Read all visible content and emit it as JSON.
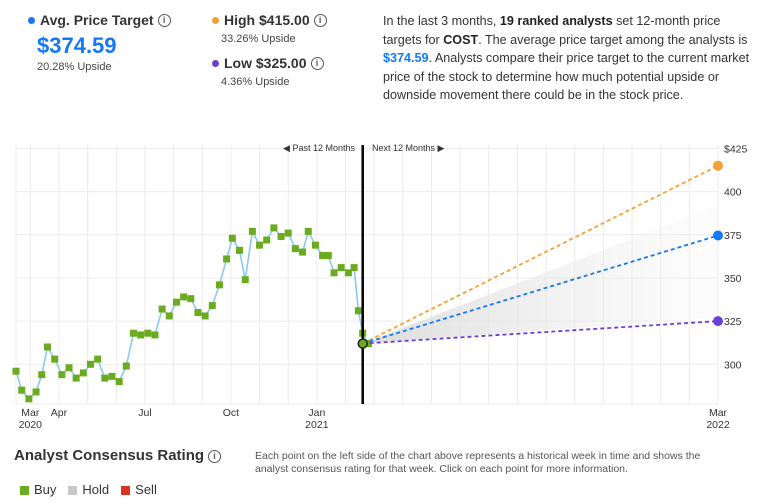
{
  "avg": {
    "label": "Avg. Price Target",
    "value": "$374.59",
    "upside": "20.28% Upside",
    "color": "#1479f5"
  },
  "high": {
    "label": "High $415.00",
    "upside": "33.26% Upside",
    "color": "#f5a032"
  },
  "low": {
    "label": "Low $325.00",
    "upside": "4.36% Upside",
    "color": "#6a3fd6"
  },
  "description": {
    "p1": "In the last 3 months, ",
    "analysts": "19 ranked analysts",
    "p2": " set 12-month price targets for ",
    "ticker": "COST",
    "p3": ". The average price target among the analysts is ",
    "price": "$374.59",
    "p4": ". Analysts compare their price target to the current market price of the stock to determine how much potential upside or downside movement there could be in the stock price."
  },
  "past_label": "Past 12 Months",
  "next_label": "Next 12 Months",
  "rating": {
    "title": "Analyst Consensus Rating",
    "note": "Each point on the left side of the chart above represents a historical week in time and shows the analyst consensus rating for that week. Click on each point for more information.",
    "legend": [
      {
        "label": "Buy",
        "color": "#6aab1f"
      },
      {
        "label": "Hold",
        "color": "#c8c8c8"
      },
      {
        "label": "Sell",
        "color": "#d9341e"
      }
    ]
  },
  "chart_data": {
    "type": "line",
    "ylim": [
      277,
      427
    ],
    "yticks": [
      300,
      325,
      350,
      375,
      400,
      425
    ],
    "ytick_labels": [
      "300",
      "325",
      "350",
      "375",
      "400",
      "$425"
    ],
    "x_labels": [
      {
        "x": 0.5,
        "label": "Mar",
        "sub": "2020"
      },
      {
        "x": 1.5,
        "label": "Apr",
        "sub": ""
      },
      {
        "x": 4.5,
        "label": "Jul",
        "sub": ""
      },
      {
        "x": 7.5,
        "label": "Oct",
        "sub": ""
      },
      {
        "x": 10.5,
        "label": "Jan",
        "sub": "2021"
      },
      {
        "x": 24.5,
        "label": "Mar",
        "sub": "2022"
      }
    ],
    "xlim": [
      0,
      24.5
    ],
    "current": {
      "x": 12.1,
      "y": 312
    },
    "price_weeks": [
      [
        0.0,
        296
      ],
      [
        0.2,
        285
      ],
      [
        0.45,
        280
      ],
      [
        0.7,
        284
      ],
      [
        0.9,
        294
      ],
      [
        1.1,
        310
      ],
      [
        1.35,
        303
      ],
      [
        1.6,
        294
      ],
      [
        1.85,
        298
      ],
      [
        2.1,
        292
      ],
      [
        2.35,
        295
      ],
      [
        2.6,
        300
      ],
      [
        2.85,
        303
      ],
      [
        3.1,
        292
      ],
      [
        3.35,
        293
      ],
      [
        3.6,
        290
      ],
      [
        3.85,
        299
      ],
      [
        4.1,
        318
      ],
      [
        4.35,
        317
      ],
      [
        4.6,
        318
      ],
      [
        4.85,
        317
      ],
      [
        5.1,
        332
      ],
      [
        5.35,
        328
      ],
      [
        5.6,
        336
      ],
      [
        5.85,
        339
      ],
      [
        6.1,
        338
      ],
      [
        6.35,
        330
      ],
      [
        6.6,
        328
      ],
      [
        6.85,
        334
      ],
      [
        7.1,
        346
      ],
      [
        7.35,
        361
      ],
      [
        7.55,
        373
      ],
      [
        7.8,
        366
      ],
      [
        8.0,
        349
      ],
      [
        8.25,
        377
      ],
      [
        8.5,
        369
      ],
      [
        8.75,
        372
      ],
      [
        9.0,
        379
      ],
      [
        9.25,
        374
      ],
      [
        9.5,
        376
      ],
      [
        9.75,
        367
      ],
      [
        10.0,
        365
      ],
      [
        10.2,
        377
      ],
      [
        10.45,
        369
      ],
      [
        10.7,
        363
      ],
      [
        10.9,
        363
      ],
      [
        11.1,
        353
      ],
      [
        11.35,
        356
      ],
      [
        11.6,
        353
      ],
      [
        11.8,
        356
      ],
      [
        11.95,
        331
      ],
      [
        12.1,
        318
      ],
      [
        12.3,
        312
      ]
    ],
    "series": [
      {
        "name": "High $415.00",
        "from": [
          12.1,
          312
        ],
        "to": [
          24.5,
          415
        ],
        "color": "#f5a032"
      },
      {
        "name": "Avg. Price Target",
        "from": [
          12.1,
          312
        ],
        "to": [
          24.5,
          374.59
        ],
        "color": "#1479f5"
      },
      {
        "name": "Low $325.00",
        "from": [
          12.1,
          312
        ],
        "to": [
          24.5,
          325
        ],
        "color": "#6a3fd6"
      }
    ]
  }
}
